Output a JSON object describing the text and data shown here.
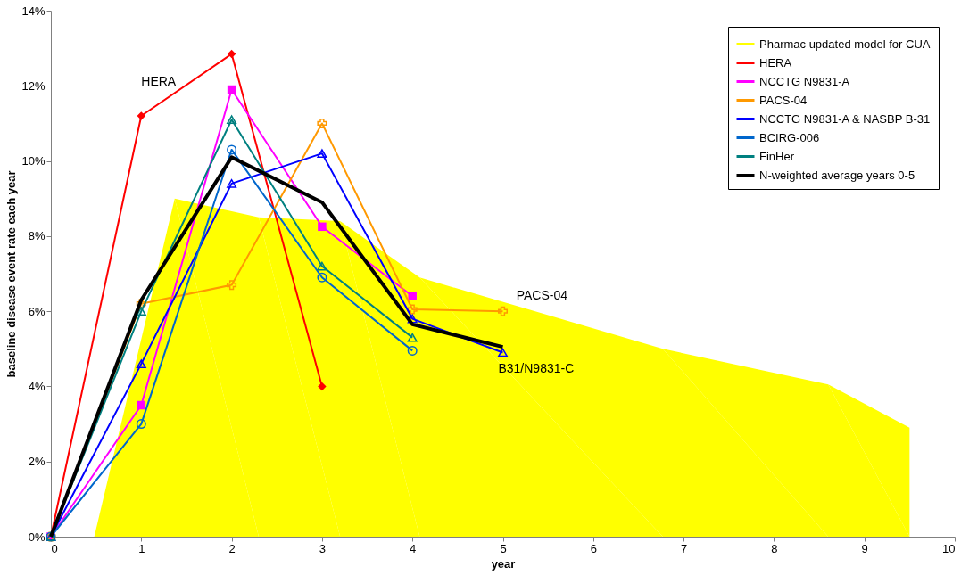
{
  "chart_data": {
    "type": "line",
    "xlabel": "year",
    "ylabel": "baseline disease event rate each year",
    "xlim": [
      0,
      10
    ],
    "xticks": [
      0,
      1,
      2,
      3,
      4,
      5,
      6,
      7,
      8,
      9,
      10
    ],
    "ylim": [
      0,
      14
    ],
    "yticks": [
      {
        "value": 0,
        "label": "0%"
      },
      {
        "value": 2,
        "label": "2%"
      },
      {
        "value": 4,
        "label": "4%"
      },
      {
        "value": 6,
        "label": "6%"
      },
      {
        "value": 8,
        "label": "8%"
      },
      {
        "value": 10,
        "label": "10%"
      },
      {
        "value": 12,
        "label": "12%"
      },
      {
        "value": 14,
        "label": "14%"
      }
    ],
    "grid": false,
    "legend": "top right",
    "x": [
      0,
      1,
      2,
      3,
      4,
      5
    ],
    "series": [
      {
        "name": "Pharmac updated model for CUA",
        "type": "area",
        "color": "#ffff00",
        "marker": "none",
        "x": [
          0.48,
          1.37,
          2.3,
          3.2,
          4.08,
          6.77,
          8.6,
          9.5
        ],
        "values": [
          0,
          9.0,
          8.5,
          8.4,
          6.9,
          5.0,
          4.05,
          2.9
        ]
      },
      {
        "name": "HERA",
        "color": "#ff0000",
        "marker": "diamond",
        "values": [
          0,
          11.2,
          12.85,
          4.0,
          null,
          null
        ]
      },
      {
        "name": "NCCTG N9831-A",
        "color": "#ff00ff",
        "marker": "square",
        "values": [
          0,
          3.5,
          11.9,
          8.25,
          6.4,
          null
        ]
      },
      {
        "name": "PACS-04",
        "color": "#ff9900",
        "marker": "cross",
        "values": [
          0,
          6.2,
          6.7,
          11.0,
          6.05,
          6.0
        ]
      },
      {
        "name": "NCCTG N9831-A & NASBP B-31",
        "color": "#0000ff",
        "marker": "triangle",
        "values": [
          0,
          4.6,
          9.4,
          10.2,
          5.8,
          4.9
        ]
      },
      {
        "name": "BCIRG-006",
        "color": "#0066cc",
        "marker": "circle",
        "values": [
          0,
          3.0,
          10.3,
          6.9,
          4.95,
          null
        ]
      },
      {
        "name": "FinHer",
        "color": "#008080",
        "marker": "triangle",
        "values": [
          0,
          6.0,
          11.1,
          7.2,
          5.3,
          null
        ]
      },
      {
        "name": "N-weighted average years 0-5",
        "color": "#000000",
        "marker": "none",
        "values": [
          0,
          6.3,
          10.1,
          8.9,
          5.65,
          5.05
        ]
      }
    ],
    "annotations": [
      "HERA",
      "PACS-04",
      "B31/N9831-C"
    ]
  }
}
